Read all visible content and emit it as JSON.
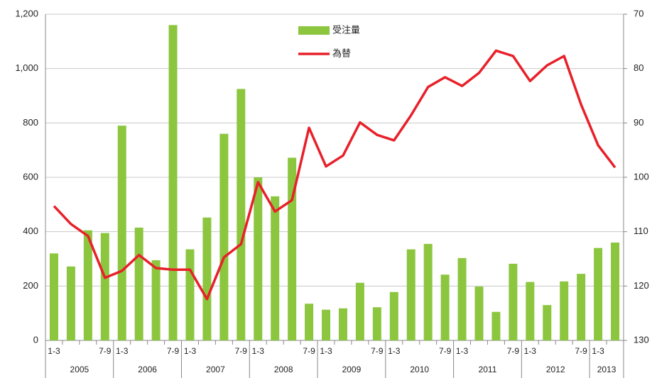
{
  "chart_data": {
    "type": "bar-line",
    "categories": [
      "1-3",
      null,
      null,
      "7-9",
      "1-3",
      null,
      null,
      "7-9",
      "1-3",
      null,
      null,
      "7-9",
      "1-3",
      null,
      null,
      "7-9",
      "1-3",
      null,
      null,
      "7-9",
      "1-3",
      null,
      null,
      "7-9",
      "1-3",
      null,
      null,
      "7-9",
      "1-3",
      null,
      null,
      "7-9",
      "1-3",
      null
    ],
    "years": [
      "2005",
      "2006",
      "2007",
      "2008",
      "2009",
      "2010",
      "2011",
      "2012",
      "2013"
    ],
    "series": [
      {
        "name": "受注量",
        "type": "bar",
        "color": "#8cc63f",
        "axis": "y",
        "values": [
          320,
          272,
          405,
          395,
          790,
          415,
          295,
          1160,
          335,
          452,
          760,
          925,
          600,
          530,
          672,
          135,
          113,
          118,
          212,
          122,
          178,
          335,
          355,
          242,
          303,
          198,
          105,
          282,
          215,
          130,
          217,
          245,
          340,
          360
        ]
      },
      {
        "name": "為替",
        "type": "line",
        "color": "#e8202a",
        "axis": "y2",
        "values": [
          105.3,
          108.6,
          110.8,
          118.5,
          117.2,
          114.3,
          116.7,
          117.0,
          117.0,
          122.4,
          114.7,
          112.3,
          100.9,
          106.3,
          104.2,
          90.9,
          98.0,
          96.0,
          89.9,
          92.2,
          93.2,
          88.6,
          83.4,
          81.6,
          83.2,
          80.8,
          76.7,
          77.7,
          82.3,
          79.4,
          77.7,
          86.6,
          94.1,
          98.2
        ]
      }
    ],
    "ylim": [
      0,
      1200
    ],
    "yticks": [
      0,
      200,
      400,
      600,
      800,
      {
        "value": 1000,
        "label": "1,000"
      },
      {
        "value": 1200,
        "label": "1,200"
      }
    ],
    "y2lim": [
      130,
      70
    ],
    "y2ticks": [
      70,
      80,
      90,
      100,
      110,
      120,
      130
    ],
    "grid": true
  }
}
